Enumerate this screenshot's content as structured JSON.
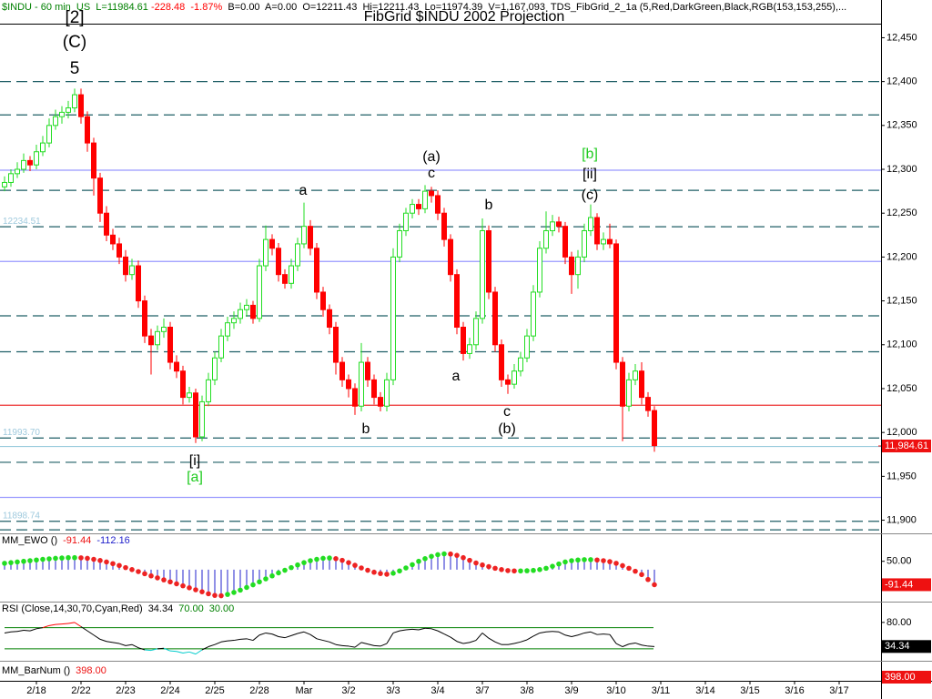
{
  "chart_data": [
    {
      "type": "candlestick",
      "title": "FibGrid $INDU 2002 Projection",
      "header": [
        {
          "text": "$INDU - 60 min  US  L=11984.61",
          "color": "#008000"
        },
        {
          "text": " -228.48  -1.87%",
          "color": "#ff0000"
        },
        {
          "text": "  B=0.00  A=0.00  O=12211.43  Hi=12211.43  Lo=11974.39  V=1,167,093  TDS_FibGrid_2_1a (5,Red,DarkGreen,Black,RGB(153,153,255),...",
          "color": "#000000"
        }
      ],
      "x_labels": [
        "2/18",
        "2/22",
        "2/23",
        "2/24",
        "2/25",
        "2/28",
        "Mar",
        "3/2",
        "3/3",
        "3/4",
        "3/7",
        "3/8",
        "3/9",
        "3/10",
        "3/11",
        "3/14",
        "3/15",
        "3/16",
        "3/17"
      ],
      "up_color": "#22dd22",
      "down_color": "#ff0000",
      "ylim": [
        11885,
        12493
      ],
      "yticks": [
        {
          "value": 12450,
          "label": "12,450"
        },
        {
          "value": 12400,
          "label": "12,400"
        },
        {
          "value": 12350,
          "label": "12,350"
        },
        {
          "value": 12300,
          "label": "12,300"
        },
        {
          "value": 12250,
          "label": "12,250"
        },
        {
          "value": 12200,
          "label": "12,200"
        },
        {
          "value": 12150,
          "label": "12,150"
        },
        {
          "value": 12100,
          "label": "12,100"
        },
        {
          "value": 12050,
          "label": "12,050"
        },
        {
          "value": 12000,
          "label": "12,000"
        },
        {
          "value": 11950,
          "label": "11,950"
        },
        {
          "value": 11900,
          "label": "11,900"
        }
      ],
      "levels": [
        {
          "value": 12400,
          "color": "#1f5f66",
          "dash": true
        },
        {
          "value": 12362,
          "color": "#1f5f66",
          "dash": true
        },
        {
          "value": 12276,
          "color": "#1f5f66",
          "dash": true
        },
        {
          "value": 12234.51,
          "color": "#1f5f66",
          "dash": true
        },
        {
          "value": 12133,
          "color": "#1f5f66",
          "dash": true
        },
        {
          "value": 12092,
          "color": "#1f5f66",
          "dash": true
        },
        {
          "value": 11993.7,
          "color": "#1f5f66",
          "dash": true
        },
        {
          "value": 11966,
          "color": "#1f5f66",
          "dash": true
        },
        {
          "value": 11898.74,
          "color": "#1f5f66",
          "dash": true
        },
        {
          "value": 11889,
          "color": "#1f5f66",
          "dash": true
        },
        {
          "value": 12299,
          "color": "#9999ff",
          "dash": false
        },
        {
          "value": 12195,
          "color": "#9999ff",
          "dash": false
        },
        {
          "value": 11926,
          "color": "#9999ff",
          "dash": false
        },
        {
          "value": 12031,
          "color": "#ee3333",
          "dash": false
        },
        {
          "value": 11984,
          "color": "#99ccdd",
          "dash": false
        }
      ],
      "level_labels": [
        12234.51,
        {
          "value": 11993.7,
          "label": "11993.70"
        },
        11898.74
      ],
      "last_price": {
        "value": 11984.61,
        "label": "11,984.61"
      },
      "annotations": [
        {
          "text": "[2]",
          "color": "#000000"
        },
        {
          "text": "(C)",
          "color": "#000000"
        },
        {
          "text": "5",
          "color": "#000000"
        },
        {
          "text": "a",
          "color": "#000000"
        },
        {
          "text": "b",
          "color": "#000000"
        },
        {
          "text": "(a)",
          "color": "#000000"
        },
        {
          "text": "c",
          "color": "#000000"
        },
        {
          "text": "b",
          "color": "#000000"
        },
        {
          "text": "a",
          "color": "#000000"
        },
        {
          "text": "c",
          "color": "#000000"
        },
        {
          "text": "(b)",
          "color": "#000000"
        },
        {
          "text": "[b]",
          "color": "#22cc22"
        },
        {
          "text": "[ii]",
          "color": "#000000"
        },
        {
          "text": "(c)",
          "color": "#000000"
        },
        {
          "text": "[i]",
          "color": "#000000"
        },
        {
          "text": "[a]",
          "color": "#22cc22"
        }
      ],
      "ohlc": [
        [
          12280,
          12292,
          12275,
          12285
        ],
        [
          12285,
          12300,
          12280,
          12295
        ],
        [
          12295,
          12308,
          12290,
          12300
        ],
        [
          12300,
          12318,
          12296,
          12310
        ],
        [
          12310,
          12315,
          12298,
          12305
        ],
        [
          12305,
          12328,
          12300,
          12320
        ],
        [
          12320,
          12338,
          12315,
          12330
        ],
        [
          12330,
          12358,
          12325,
          12350
        ],
        [
          12350,
          12368,
          12345,
          12360
        ],
        [
          12360,
          12372,
          12352,
          12365
        ],
        [
          12365,
          12378,
          12358,
          12370
        ],
        [
          12370,
          12392,
          12365,
          12385
        ],
        [
          12385,
          12392,
          12352,
          12360
        ],
        [
          12360,
          12366,
          12320,
          12330
        ],
        [
          12330,
          12336,
          12270,
          12290
        ],
        [
          12290,
          12296,
          12240,
          12250
        ],
        [
          12250,
          12258,
          12218,
          12225
        ],
        [
          12225,
          12232,
          12208,
          12215
        ],
        [
          12215,
          12222,
          12192,
          12200
        ],
        [
          12200,
          12208,
          12172,
          12180
        ],
        [
          12180,
          12198,
          12174,
          12190
        ],
        [
          12190,
          12196,
          12142,
          12150
        ],
        [
          12150,
          12156,
          12102,
          12110
        ],
        [
          12110,
          12118,
          12066,
          12100
        ],
        [
          12100,
          12122,
          12094,
          12115
        ],
        [
          12115,
          12130,
          12108,
          12120
        ],
        [
          12120,
          12126,
          12072,
          12080
        ],
        [
          12080,
          12088,
          12062,
          12070
        ],
        [
          12070,
          12076,
          12032,
          12040
        ],
        [
          12040,
          12052,
          12034,
          12045
        ],
        [
          12045,
          12050,
          11988,
          11995
        ],
        [
          11995,
          12042,
          11990,
          12035
        ],
        [
          12035,
          12068,
          12030,
          12060
        ],
        [
          12060,
          12092,
          12054,
          12085
        ],
        [
          12085,
          12118,
          12080,
          12110
        ],
        [
          12110,
          12132,
          12104,
          12125
        ],
        [
          12125,
          12138,
          12118,
          12130
        ],
        [
          12130,
          12148,
          12124,
          12140
        ],
        [
          12140,
          12152,
          12132,
          12145
        ],
        [
          12145,
          12150,
          12124,
          12130
        ],
        [
          12130,
          12198,
          12126,
          12190
        ],
        [
          12190,
          12236,
          12184,
          12220
        ],
        [
          12220,
          12226,
          12202,
          12210
        ],
        [
          12210,
          12216,
          12172,
          12180
        ],
        [
          12180,
          12186,
          12164,
          12170
        ],
        [
          12170,
          12198,
          12164,
          12190
        ],
        [
          12190,
          12222,
          12184,
          12215
        ],
        [
          12215,
          12262,
          12210,
          12235
        ],
        [
          12235,
          12242,
          12202,
          12210
        ],
        [
          12210,
          12216,
          12152,
          12160
        ],
        [
          12160,
          12166,
          12132,
          12140
        ],
        [
          12140,
          12146,
          12112,
          12120
        ],
        [
          12120,
          12126,
          12066,
          12080
        ],
        [
          12080,
          12086,
          12052,
          12060
        ],
        [
          12060,
          12066,
          12040,
          12050
        ],
        [
          12050,
          12056,
          12020,
          12030
        ],
        [
          12030,
          12102,
          12024,
          12080
        ],
        [
          12080,
          12086,
          12052,
          12060
        ],
        [
          12060,
          12066,
          12032,
          12040
        ],
        [
          12040,
          12046,
          12024,
          12030
        ],
        [
          12030,
          12068,
          12024,
          12060
        ],
        [
          12060,
          12210,
          12054,
          12200
        ],
        [
          12200,
          12238,
          12194,
          12230
        ],
        [
          12230,
          12256,
          12224,
          12250
        ],
        [
          12250,
          12266,
          12244,
          12260
        ],
        [
          12260,
          12266,
          12248,
          12255
        ],
        [
          12255,
          12282,
          12250,
          12275
        ],
        [
          12275,
          12280,
          12262,
          12270
        ],
        [
          12270,
          12276,
          12242,
          12250
        ],
        [
          12250,
          12256,
          12212,
          12220
        ],
        [
          12220,
          12226,
          12172,
          12180
        ],
        [
          12180,
          12186,
          12112,
          12120
        ],
        [
          12120,
          12126,
          12082,
          12090
        ],
        [
          12090,
          12108,
          12084,
          12100
        ],
        [
          12100,
          12138,
          12094,
          12130
        ],
        [
          12130,
          12244,
          12124,
          12230
        ],
        [
          12230,
          12236,
          12152,
          12160
        ],
        [
          12160,
          12166,
          12092,
          12100
        ],
        [
          12100,
          12106,
          12052,
          12060
        ],
        [
          12060,
          12066,
          12044,
          12055
        ],
        [
          12055,
          12078,
          12050,
          12070
        ],
        [
          12070,
          12092,
          12064,
          12085
        ],
        [
          12085,
          12118,
          12080,
          12110
        ],
        [
          12110,
          12168,
          12104,
          12160
        ],
        [
          12160,
          12218,
          12154,
          12210
        ],
        [
          12210,
          12252,
          12204,
          12230
        ],
        [
          12230,
          12248,
          12224,
          12240
        ],
        [
          12240,
          12246,
          12228,
          12235
        ],
        [
          12235,
          12240,
          12192,
          12200
        ],
        [
          12200,
          12206,
          12158,
          12180
        ],
        [
          12180,
          12208,
          12164,
          12200
        ],
        [
          12200,
          12238,
          12194,
          12230
        ],
        [
          12230,
          12260,
          12224,
          12245
        ],
        [
          12245,
          12250,
          12208,
          12215
        ],
        [
          12215,
          12228,
          12208,
          12220
        ],
        [
          12220,
          12238,
          12210,
          12215
        ],
        [
          12215,
          12220,
          12072,
          12080
        ],
        [
          12080,
          12086,
          11990,
          12030
        ],
        [
          12030,
          12068,
          12024,
          12060
        ],
        [
          12060,
          12078,
          12054,
          12070
        ],
        [
          12070,
          12080,
          12032,
          12040
        ],
        [
          12040,
          12046,
          12018,
          12025
        ],
        [
          12025,
          12030,
          11978,
          11985
        ]
      ]
    },
    {
      "type": "ewo",
      "title": "MM_EWO ()",
      "signal": -112.16,
      "rise_color": "#22dd22",
      "fall_color": "#ee2222",
      "hist_color": "#2222cc",
      "ylim": [
        -188,
        208
      ],
      "yticks": [
        {
          "value": 50,
          "label": "50.00"
        }
      ],
      "values": [
        38,
        42,
        46,
        50,
        54,
        58,
        62,
        65,
        68,
        70,
        72,
        72,
        71,
        68,
        62,
        55,
        46,
        36,
        25,
        12,
        0,
        -12,
        -25,
        -38,
        -50,
        -62,
        -74,
        -86,
        -98,
        -110,
        -122,
        -134,
        -146,
        -156,
        -158,
        -150,
        -138,
        -124,
        -108,
        -92,
        -74,
        -56,
        -38,
        -20,
        -4,
        12,
        28,
        42,
        54,
        62,
        68,
        70,
        66,
        56,
        42,
        26,
        10,
        -4,
        -16,
        -24,
        -28,
        -22,
        -8,
        10,
        30,
        50,
        66,
        80,
        90,
        95,
        94,
        86,
        72,
        56,
        40,
        28,
        18,
        8,
        0,
        -6,
        -8,
        -8,
        -7,
        -5,
        0,
        8,
        20,
        34,
        46,
        54,
        58,
        60,
        60,
        58,
        54,
        48,
        38,
        24,
        8,
        -10,
        -30,
        -60,
        -91.44
      ]
    },
    {
      "type": "rsi",
      "title": "RSI (Close,14,30,70,Cyan,Red)",
      "line_color": "#000000",
      "high_color": "#ff0000",
      "low_color": "#00cccc",
      "level_color": "#008000",
      "levels": [
        {
          "value": 70,
          "label": "70.00"
        },
        {
          "value": 30,
          "label": "30.00"
        }
      ],
      "ylim": [
        9,
        116
      ],
      "yticks": [
        {
          "value": 80,
          "label": "80.00"
        }
      ],
      "values": [
        60,
        62,
        63,
        65,
        64,
        68,
        70,
        74,
        76,
        77,
        78,
        80,
        72,
        64,
        56,
        48,
        44,
        42,
        40,
        36,
        38,
        32,
        28,
        27,
        30,
        31,
        26,
        25,
        22,
        24,
        20,
        28,
        34,
        38,
        43,
        45,
        46,
        48,
        49,
        46,
        56,
        60,
        58,
        53,
        51,
        55,
        59,
        62,
        57,
        49,
        46,
        43,
        38,
        36,
        35,
        33,
        42,
        39,
        36,
        35,
        40,
        60,
        64,
        66,
        67,
        66,
        69,
        68,
        64,
        58,
        52,
        44,
        40,
        42,
        46,
        60,
        50,
        43,
        38,
        38,
        40,
        43,
        47,
        54,
        60,
        62,
        63,
        62,
        56,
        53,
        56,
        60,
        62,
        57,
        58,
        57,
        40,
        34,
        39,
        41,
        37,
        35,
        34.34
      ]
    },
    {
      "type": "counter",
      "title": "MM_BarNum ()",
      "value": {
        "value": 398,
        "label": "398.00"
      }
    }
  ]
}
